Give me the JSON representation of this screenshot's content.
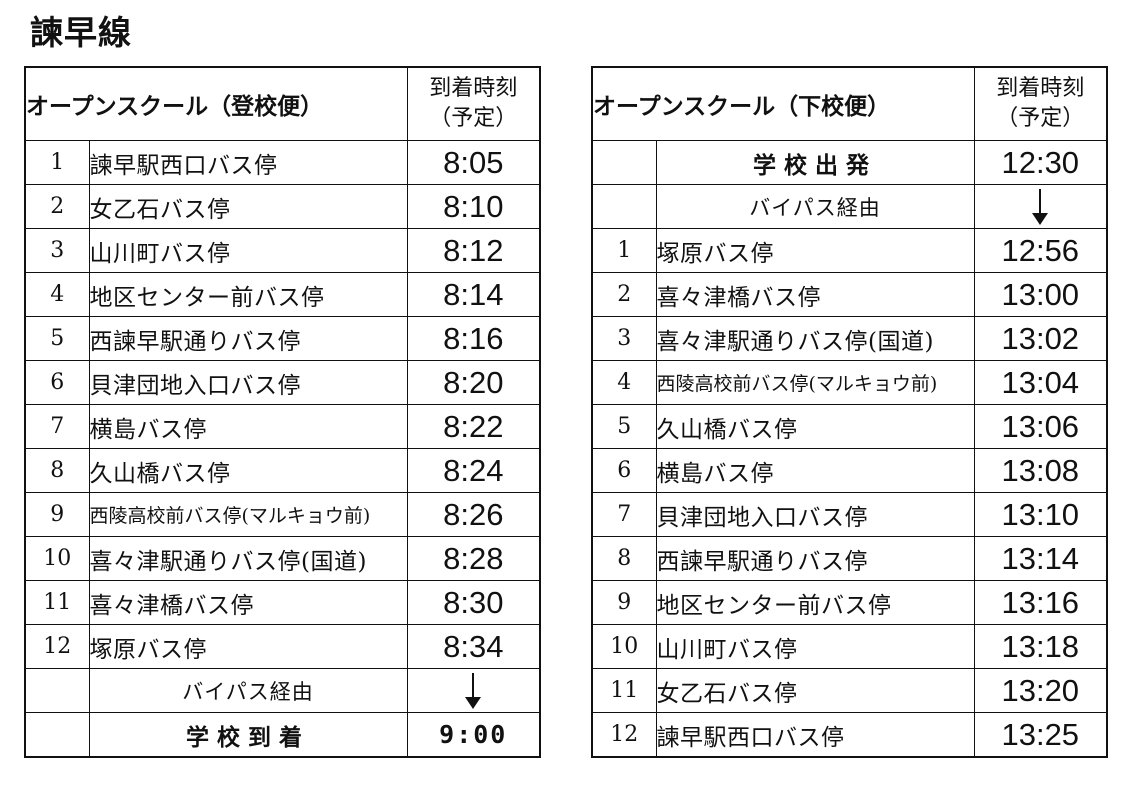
{
  "title": "諫早線",
  "left_table": {
    "header_title": "オープンスクール（登校便）",
    "time_header_line1": "到着時刻",
    "time_header_line2": "（予定）",
    "rows": [
      {
        "num": "1",
        "stop": "諫早駅西口バス停",
        "time": "8:05"
      },
      {
        "num": "2",
        "stop": "女乙石バス停",
        "time": "8:10"
      },
      {
        "num": "3",
        "stop": "山川町バス停",
        "time": "8:12"
      },
      {
        "num": "4",
        "stop": "地区センター前バス停",
        "time": "8:14"
      },
      {
        "num": "5",
        "stop": "西諫早駅通りバス停",
        "time": "8:16"
      },
      {
        "num": "6",
        "stop": "貝津団地入口バス停",
        "time": "8:20"
      },
      {
        "num": "7",
        "stop": "横島バス停",
        "time": "8:22"
      },
      {
        "num": "8",
        "stop": "久山橋バス停",
        "time": "8:24"
      },
      {
        "num": "9",
        "stop": "西陵高校前バス停(マルキョウ前)",
        "time": "8:26"
      },
      {
        "num": "10",
        "stop": "喜々津駅通りバス停(国道)",
        "time": "8:28"
      },
      {
        "num": "11",
        "stop": "喜々津橋バス停",
        "time": "8:30"
      },
      {
        "num": "12",
        "stop": "塚原バス停",
        "time": "8:34"
      }
    ],
    "via_label": "バイパス経由",
    "arrival_label": "学校到着",
    "arrival_time": "9:00"
  },
  "right_table": {
    "header_title": "オープンスクール（下校便）",
    "time_header_line1": "到着時刻",
    "time_header_line2": "（予定）",
    "departure_label": "学校出発",
    "departure_time": "12:30",
    "via_label": "バイパス経由",
    "rows": [
      {
        "num": "1",
        "stop": "塚原バス停",
        "time": "12:56"
      },
      {
        "num": "2",
        "stop": "喜々津橋バス停",
        "time": "13:00"
      },
      {
        "num": "3",
        "stop": "喜々津駅通りバス停(国道)",
        "time": "13:02"
      },
      {
        "num": "4",
        "stop": "西陵高校前バス停(マルキョウ前)",
        "time": "13:04"
      },
      {
        "num": "5",
        "stop": "久山橋バス停",
        "time": "13:06"
      },
      {
        "num": "6",
        "stop": "横島バス停",
        "time": "13:08"
      },
      {
        "num": "7",
        "stop": "貝津団地入口バス停",
        "time": "13:10"
      },
      {
        "num": "8",
        "stop": "西諫早駅通りバス停",
        "time": "13:14"
      },
      {
        "num": "9",
        "stop": "地区センター前バス停",
        "time": "13:16"
      },
      {
        "num": "10",
        "stop": "山川町バス停",
        "time": "13:18"
      },
      {
        "num": "11",
        "stop": "女乙石バス停",
        "time": "13:20"
      },
      {
        "num": "12",
        "stop": "諫早駅西口バス停",
        "time": "13:25"
      }
    ]
  }
}
